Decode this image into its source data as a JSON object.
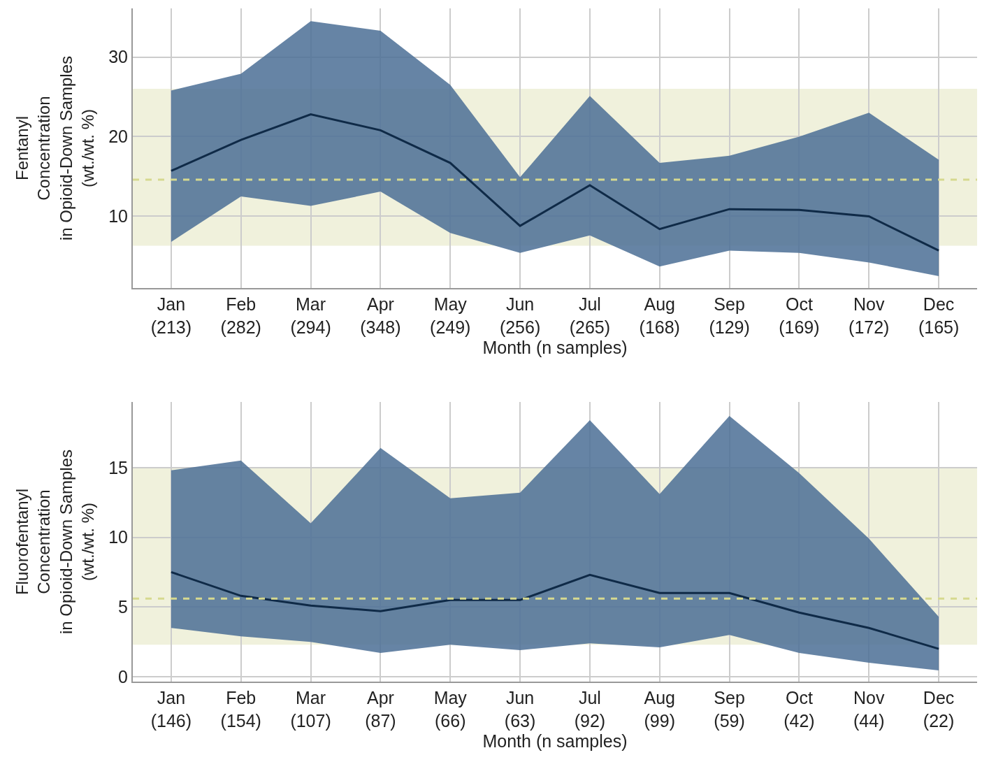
{
  "chart_data": [
    {
      "type": "line",
      "categories": [
        "Jan\n(213)",
        "Feb\n(282)",
        "Mar\n(294)",
        "Apr\n(348)",
        "May\n(249)",
        "Jun\n(256)",
        "Jul\n(265)",
        "Aug\n(168)",
        "Sep\n(129)",
        "Oct\n(169)",
        "Nov\n(172)",
        "Dec\n(165)"
      ],
      "xlabel": "Month (n samples)",
      "ylabel": "Fentanyl\nConcentration\nin Opioid-Down Samples\n(wt./wt. %)",
      "series": [
        {
          "color": "#0f2a47",
          "values": [
            15.7,
            19.6,
            22.8,
            20.8,
            16.7,
            8.8,
            13.9,
            8.4,
            10.9,
            10.8,
            10.0,
            5.7
          ],
          "lower": [
            6.8,
            12.5,
            11.3,
            13.1,
            7.9,
            5.4,
            7.6,
            3.7,
            5.7,
            5.4,
            4.2,
            2.5
          ],
          "upper": [
            25.8,
            27.9,
            34.5,
            33.3,
            26.5,
            14.9,
            25.1,
            16.7,
            17.6,
            20.0,
            23.0,
            17.1
          ]
        }
      ],
      "ylim": [
        1,
        36.1
      ],
      "yticks": [
        10,
        20,
        30
      ],
      "grid": true,
      "marker": "none",
      "line_style": "solid",
      "bands": [
        {
          "axis": "y",
          "from": 6.3,
          "to": 26.0,
          "color": "#e6e8c4"
        }
      ],
      "ref_lines": [
        {
          "axis": "y",
          "value": 14.6,
          "color": "#d6d98f",
          "line_style": "dashed"
        }
      ]
    },
    {
      "type": "line",
      "categories": [
        "Jan\n(146)",
        "Feb\n(154)",
        "Mar\n(107)",
        "Apr\n(87)",
        "May\n(66)",
        "Jun\n(63)",
        "Jul\n(92)",
        "Aug\n(99)",
        "Sep\n(59)",
        "Oct\n(42)",
        "Nov\n(44)",
        "Dec\n(22)"
      ],
      "xlabel": "Month (n samples)",
      "ylabel": "Fluorofentanyl\nConcentration\nin Opioid-Down Samples\n(wt./wt. %)",
      "series": [
        {
          "color": "#0f2a47",
          "values": [
            7.5,
            5.8,
            5.1,
            4.7,
            5.5,
            5.5,
            7.3,
            6.0,
            6.0,
            4.6,
            3.5,
            2.0
          ],
          "lower": [
            3.5,
            2.9,
            2.5,
            1.7,
            2.3,
            1.9,
            2.4,
            2.1,
            3.0,
            1.7,
            1.0,
            0.45
          ],
          "upper": [
            14.8,
            15.5,
            11.0,
            16.4,
            12.8,
            13.2,
            18.4,
            13.1,
            18.7,
            14.6,
            9.9,
            4.3
          ]
        }
      ],
      "ylim": [
        -0.35,
        19.7
      ],
      "yticks": [
        0,
        5,
        10,
        15
      ],
      "grid": true,
      "marker": "none",
      "line_style": "solid",
      "bands": [
        {
          "axis": "y",
          "from": 2.3,
          "to": 15.0,
          "color": "#e6e8c4"
        }
      ],
      "ref_lines": [
        {
          "axis": "y",
          "value": 5.6,
          "color": "#d6d98f",
          "line_style": "dashed"
        }
      ]
    }
  ]
}
